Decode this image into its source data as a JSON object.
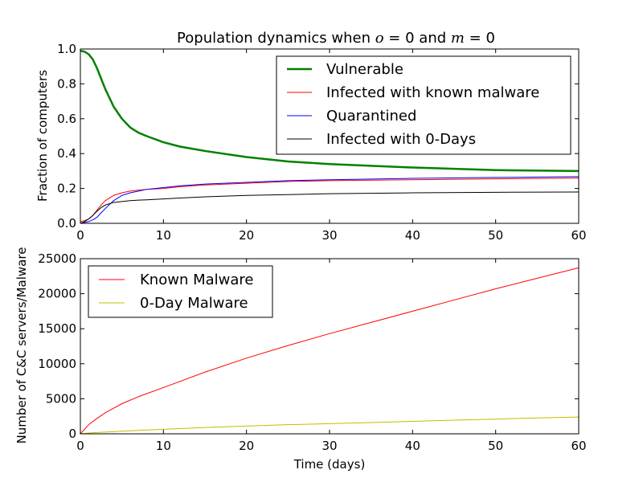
{
  "chart_data": [
    {
      "type": "line",
      "title": {
        "prefix": "Population dynamics when ",
        "var1": "o",
        "eq1": " = 0",
        "mid": " and ",
        "var2": "m",
        "eq2": " = 0"
      },
      "xlabel": "",
      "ylabel": "Fraction of computers",
      "xlim": [
        0,
        60
      ],
      "ylim": [
        0,
        1.0
      ],
      "xticks": [
        "0",
        "10",
        "20",
        "30",
        "40",
        "50",
        "60"
      ],
      "yticks": [
        "0.0",
        "0.2",
        "0.4",
        "0.6",
        "0.8",
        "1.0"
      ],
      "grid": false,
      "legend_position": "top-right",
      "x": [
        0,
        0.5,
        1,
        1.5,
        2,
        2.5,
        3,
        4,
        5,
        6,
        7,
        8,
        10,
        12,
        15,
        20,
        25,
        30,
        40,
        50,
        60
      ],
      "series": [
        {
          "name": "Vulnerable",
          "color": "#008000",
          "line_width": 2.5,
          "values": [
            0.99,
            0.985,
            0.97,
            0.94,
            0.89,
            0.83,
            0.77,
            0.67,
            0.6,
            0.55,
            0.52,
            0.5,
            0.465,
            0.44,
            0.415,
            0.38,
            0.355,
            0.34,
            0.32,
            0.305,
            0.3
          ]
        },
        {
          "name": "Infected with known malware",
          "color": "#ff0000",
          "line_width": 1,
          "values": [
            0.01,
            0.015,
            0.025,
            0.045,
            0.075,
            0.105,
            0.13,
            0.16,
            0.175,
            0.185,
            0.19,
            0.195,
            0.2,
            0.21,
            0.22,
            0.23,
            0.24,
            0.245,
            0.25,
            0.255,
            0.26
          ]
        },
        {
          "name": "Quarantined",
          "color": "#0000ff",
          "line_width": 1,
          "values": [
            0.0,
            0.005,
            0.01,
            0.02,
            0.035,
            0.06,
            0.085,
            0.13,
            0.16,
            0.175,
            0.185,
            0.195,
            0.205,
            0.215,
            0.225,
            0.235,
            0.245,
            0.25,
            0.258,
            0.263,
            0.268
          ]
        },
        {
          "name": "Infected with 0-Days",
          "color": "#000000",
          "line_width": 1,
          "values": [
            0.0,
            0.01,
            0.025,
            0.045,
            0.07,
            0.09,
            0.105,
            0.12,
            0.125,
            0.13,
            0.133,
            0.135,
            0.14,
            0.145,
            0.152,
            0.16,
            0.165,
            0.17,
            0.175,
            0.178,
            0.18
          ]
        }
      ]
    },
    {
      "type": "line",
      "title": "",
      "xlabel": "Time (days)",
      "ylabel": "Number of C&C servers/Malware",
      "xlim": [
        0,
        60
      ],
      "ylim": [
        0,
        25000
      ],
      "xticks": [
        "0",
        "10",
        "20",
        "30",
        "40",
        "50",
        "60"
      ],
      "yticks": [
        "0",
        "5000",
        "10000",
        "15000",
        "20000",
        "25000"
      ],
      "grid": false,
      "legend_position": "top-left",
      "x": [
        0,
        1,
        2,
        3,
        5,
        7,
        10,
        15,
        20,
        25,
        30,
        35,
        40,
        45,
        50,
        55,
        60
      ],
      "series": [
        {
          "name": "Known Malware",
          "color": "#ff0000",
          "line_width": 1,
          "values": [
            0,
            1300,
            2200,
            3000,
            4300,
            5300,
            6600,
            8800,
            10800,
            12600,
            14300,
            15900,
            17500,
            19100,
            20700,
            22200,
            23700
          ]
        },
        {
          "name": "0-Day Malware",
          "color": "#bfbf00",
          "line_width": 1,
          "values": [
            0,
            100,
            180,
            250,
            380,
            480,
            650,
            900,
            1100,
            1300,
            1450,
            1600,
            1780,
            1950,
            2100,
            2270,
            2400
          ]
        }
      ]
    }
  ]
}
